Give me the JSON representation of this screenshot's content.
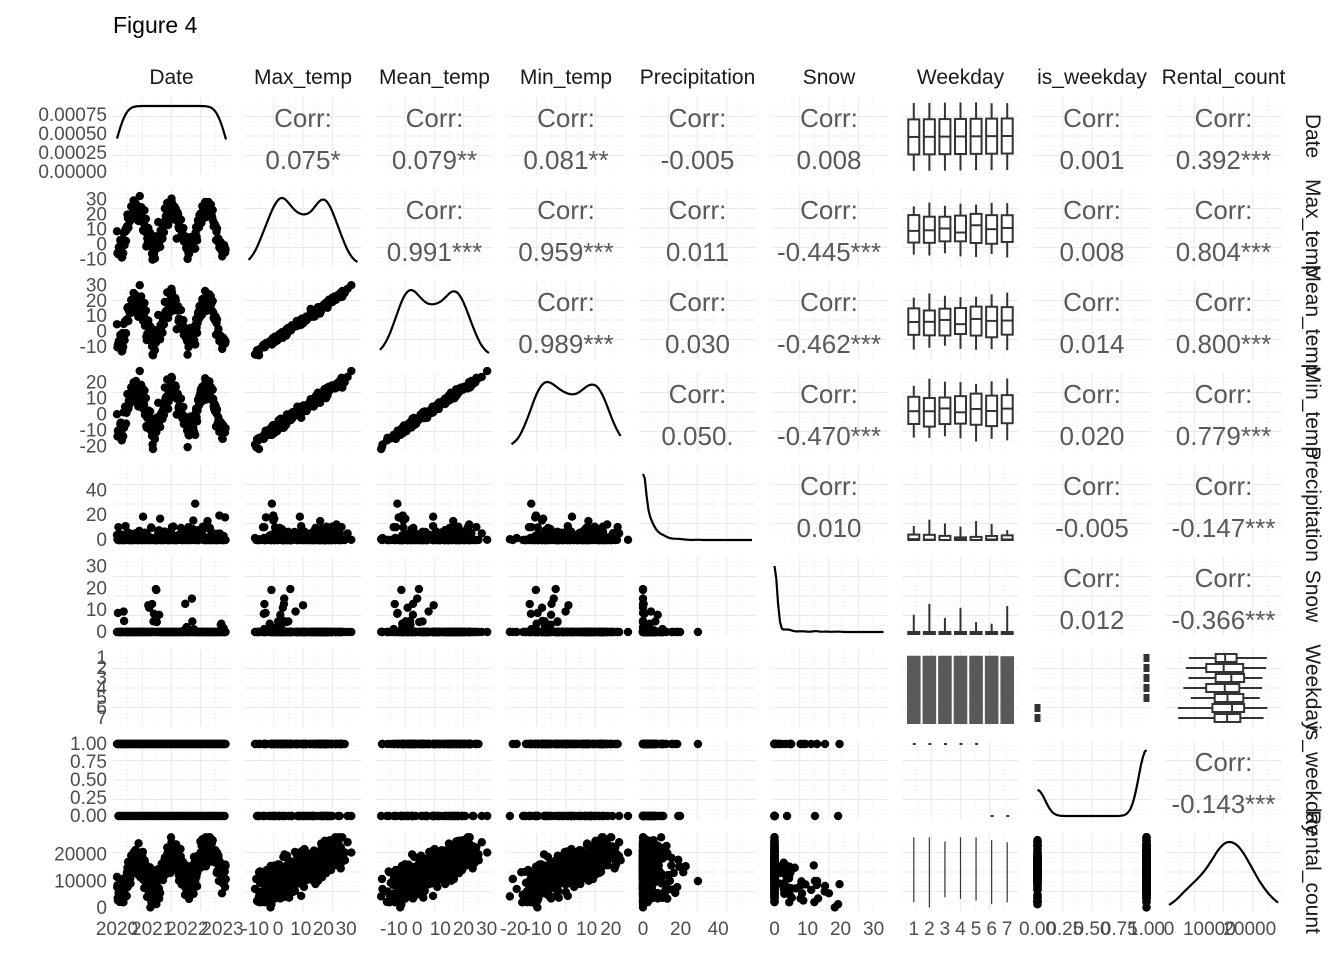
{
  "title": "Figure 4",
  "chart_data": {
    "type": "scatter-matrix",
    "variables": [
      "Date",
      "Max_temp",
      "Mean_temp",
      "Min_temp",
      "Precipitation",
      "Snow",
      "Weekday",
      "is_weekday",
      "Rental_count"
    ],
    "column_strip_labels": [
      "Date",
      "Max_temp",
      "Mean_temp",
      "Min_temp",
      "Precipitation",
      "Snow",
      "Weekday",
      "is_weekday",
      "Rental_count"
    ],
    "row_strip_labels": [
      "Date",
      "Max_temp",
      "Mean_temp",
      "Min_temp",
      "Precipitation",
      "Snow",
      "Weekday",
      "is_weekday",
      "Rental_count"
    ],
    "corr_label": "Corr:",
    "correlations": {
      "Date": {
        "Max_temp": "0.075*",
        "Mean_temp": "0.079**",
        "Min_temp": "0.081**",
        "Precipitation": "-0.005",
        "Snow": "0.008",
        "is_weekday": "0.001",
        "Rental_count": "0.392***"
      },
      "Max_temp": {
        "Mean_temp": "0.991***",
        "Min_temp": "0.959***",
        "Precipitation": "0.011",
        "Snow": "-0.445***",
        "is_weekday": "0.008",
        "Rental_count": "0.804***"
      },
      "Mean_temp": {
        "Min_temp": "0.989***",
        "Precipitation": "0.030",
        "Snow": "-0.462***",
        "is_weekday": "0.014",
        "Rental_count": "0.800***"
      },
      "Min_temp": {
        "Precipitation": "0.050.",
        "Snow": "-0.470***",
        "is_weekday": "0.020",
        "Rental_count": "0.779***"
      },
      "Precipitation": {
        "Snow": "0.010",
        "is_weekday": "-0.005",
        "Rental_count": "-0.147***"
      },
      "Snow": {
        "is_weekday": "0.012",
        "Rental_count": "-0.366***"
      },
      "is_weekday": {
        "Rental_count": "-0.143***"
      }
    },
    "ranges": {
      "Date": [
        2020,
        2023.1
      ],
      "Max_temp": [
        -13,
        35
      ],
      "Mean_temp": [
        -16,
        31
      ],
      "Min_temp": [
        -21,
        24
      ],
      "Precipitation": [
        0,
        58
      ],
      "Snow": [
        0,
        33
      ],
      "Weekday": [
        0.5,
        7.5
      ],
      "is_weekday": [
        0,
        1
      ],
      "Rental_count": [
        0,
        27000
      ]
    },
    "x_tick_labels": {
      "Date": [
        "2020",
        "2021",
        "2022",
        "2023"
      ],
      "Max_temp": [
        "-10",
        "0",
        "10",
        "20",
        "30"
      ],
      "Mean_temp": [
        "-10",
        "0",
        "10",
        "20",
        "30"
      ],
      "Min_temp": [
        "-20",
        "-10",
        "0",
        "10",
        "20"
      ],
      "Precipitation": [
        "0",
        "20",
        "40"
      ],
      "Snow": [
        "0",
        "10",
        "20",
        "30"
      ],
      "Weekday": [
        "1",
        "2",
        "3",
        "4",
        "5",
        "6",
        "7"
      ],
      "is_weekday": [
        "0.00",
        "0.25",
        "0.50",
        "0.75",
        "1.00"
      ],
      "Rental_count": [
        "0",
        "10000",
        "20000"
      ]
    },
    "y_tick_labels": {
      "Date": [
        "0.00000",
        "0.00025",
        "0.00050",
        "0.00075"
      ],
      "Max_temp": [
        "-10",
        "0",
        "10",
        "20",
        "30"
      ],
      "Mean_temp": [
        "-10",
        "0",
        "10",
        "20",
        "30"
      ],
      "Min_temp": [
        "-20",
        "-10",
        "0",
        "10",
        "20"
      ],
      "Precipitation": [
        "0",
        "20",
        "40"
      ],
      "Snow": [
        "0",
        "10",
        "20",
        "30"
      ],
      "Weekday": [
        "1",
        "2",
        "3",
        "4",
        "5",
        "6",
        "7"
      ],
      "is_weekday": [
        "0.00",
        "0.25",
        "0.50",
        "0.75",
        "1.00"
      ],
      "Rental_count": [
        "0",
        "10000",
        "20000"
      ]
    },
    "date_density_ylim": [
      0,
      0.00095
    ],
    "weekday_counts": [
      156,
      156,
      156,
      156,
      156,
      156,
      155
    ],
    "is_weekday_density": "bimodal, peaks near 0 and 1",
    "grid": true,
    "legend": "none"
  }
}
